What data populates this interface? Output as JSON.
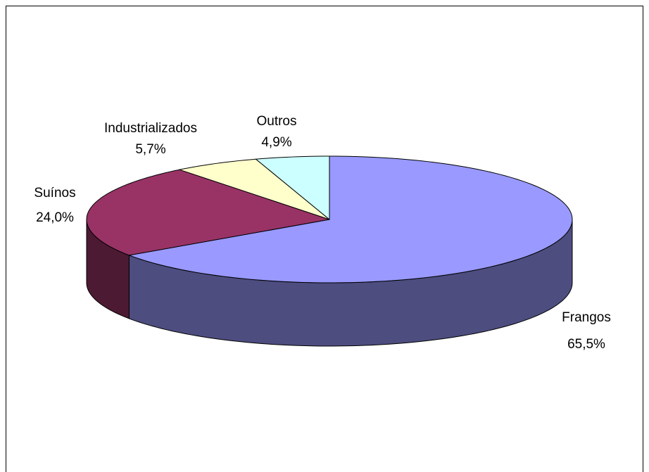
{
  "chart_data": {
    "type": "pie3d",
    "categories": [
      "Frangos",
      "Suínos",
      "Industrializados",
      "Outros"
    ],
    "values": [
      65.5,
      24.0,
      5.7,
      4.9
    ],
    "value_labels": [
      "65,5%",
      "24,0%",
      "5,7%",
      "4,9%"
    ],
    "colors": [
      "#9999ff",
      "#993366",
      "#ffffcc",
      "#ccffff"
    ]
  }
}
